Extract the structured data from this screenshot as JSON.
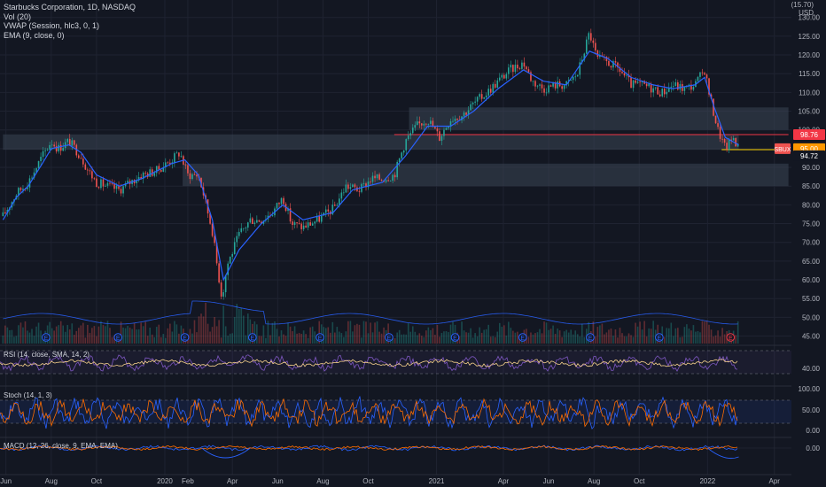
{
  "header": {
    "title": "Starbucks Corporation, 1D, NASDAQ",
    "indicators": [
      "Vol (20)",
      "VWAP (Session, hlc3, 0, 1)",
      "EMA (9, close, 0)"
    ],
    "currency_top": "(15.70)",
    "currency": "USD"
  },
  "price_labels": {
    "resistance": "98.76",
    "ticker": "SBUX",
    "last": "95.00",
    "support": "94.72"
  },
  "panes": {
    "rsi_label": "RSI (14, close, SMA, 14, 2)",
    "rsi_tick": "40.00",
    "stoch_label": "Stoch (14, 1, 3)",
    "stoch_ticks": [
      "100.00",
      "50.00",
      "0.00"
    ],
    "macd_label": "MACD (12, 26, close, 9, EMA, EMA)",
    "macd_tick": "0.00"
  },
  "colors": {
    "background": "#131722",
    "grid": "#1f2331",
    "up": "#26a69a",
    "down": "#ef5350",
    "ema": "#2962ff",
    "zone": "#3b4653",
    "resistance_line": "#f23645",
    "support_line": "#ffd600",
    "rsi": "#7e57c2",
    "rsi_ma": "#f5d08a",
    "stoch_k": "#2962ff",
    "stoch_d": "#ff6d00",
    "macd": "#2962ff",
    "signal": "#ff6d00",
    "earnings_past": "#2962ff",
    "earnings_next": "#f23645"
  },
  "chart_data": {
    "type": "line",
    "symbol": "SBUX",
    "interval": "1D",
    "exchange": "NASDAQ",
    "x_tick_labels": [
      "Jun",
      "Aug",
      "Oct",
      "2020",
      "Feb",
      "Apr",
      "Jun",
      "Aug",
      "Oct",
      "2021",
      "Apr",
      "Jun",
      "Aug",
      "Oct",
      "2022",
      "Apr"
    ],
    "y_tick_labels": [
      "130.00",
      "125.00",
      "120.00",
      "115.00",
      "110.00",
      "105.00",
      "100.00",
      "95.00",
      "90.00",
      "85.00",
      "80.00",
      "75.00",
      "70.00",
      "65.00",
      "60.00",
      "55.00",
      "50.00",
      "45.00"
    ],
    "ylim": [
      43,
      133
    ],
    "price_series": {
      "name": "SBUX",
      "points": [
        [
          "2019-05-28",
          77
        ],
        [
          "2019-06-15",
          83
        ],
        [
          "2019-07-01",
          86
        ],
        [
          "2019-07-20",
          93
        ],
        [
          "2019-08-01",
          97
        ],
        [
          "2019-08-10",
          95
        ],
        [
          "2019-08-25",
          97
        ],
        [
          "2019-09-10",
          93
        ],
        [
          "2019-09-20",
          89
        ],
        [
          "2019-10-01",
          86
        ],
        [
          "2019-10-15",
          85
        ],
        [
          "2019-11-01",
          84
        ],
        [
          "2019-11-15",
          86
        ],
        [
          "2019-12-01",
          88
        ],
        [
          "2019-12-20",
          89
        ],
        [
          "2020-01-10",
          92
        ],
        [
          "2020-01-21",
          94
        ],
        [
          "2020-02-01",
          88
        ],
        [
          "2020-02-15",
          88
        ],
        [
          "2020-02-22",
          83
        ],
        [
          "2020-03-05",
          73
        ],
        [
          "2020-03-12",
          63
        ],
        [
          "2020-03-18",
          55
        ],
        [
          "2020-03-25",
          64
        ],
        [
          "2020-04-10",
          72
        ],
        [
          "2020-04-25",
          76
        ],
        [
          "2020-05-10",
          76
        ],
        [
          "2020-05-25",
          78
        ],
        [
          "2020-06-08",
          82
        ],
        [
          "2020-06-20",
          75
        ],
        [
          "2020-07-05",
          74
        ],
        [
          "2020-07-25",
          76
        ],
        [
          "2020-08-15",
          79
        ],
        [
          "2020-09-01",
          85
        ],
        [
          "2020-09-20",
          84
        ],
        [
          "2020-10-05",
          87
        ],
        [
          "2020-10-20",
          87
        ],
        [
          "2020-11-05",
          88
        ],
        [
          "2020-11-20",
          97
        ],
        [
          "2020-12-05",
          101
        ],
        [
          "2020-12-20",
          103
        ],
        [
          "2021-01-05",
          98
        ],
        [
          "2021-01-20",
          103
        ],
        [
          "2021-02-05",
          104
        ],
        [
          "2021-02-20",
          107
        ],
        [
          "2021-03-10",
          110
        ],
        [
          "2021-03-25",
          113
        ],
        [
          "2021-04-10",
          116
        ],
        [
          "2021-04-28",
          118
        ],
        [
          "2021-05-10",
          113
        ],
        [
          "2021-05-25",
          111
        ],
        [
          "2021-06-10",
          112
        ],
        [
          "2021-06-25",
          112
        ],
        [
          "2021-07-10",
          115
        ],
        [
          "2021-07-26",
          126
        ],
        [
          "2021-08-05",
          119
        ],
        [
          "2021-08-20",
          118
        ],
        [
          "2021-09-05",
          116
        ],
        [
          "2021-09-20",
          112
        ],
        [
          "2021-10-05",
          112
        ],
        [
          "2021-10-20",
          111
        ],
        [
          "2021-11-01",
          110
        ],
        [
          "2021-11-15",
          112
        ],
        [
          "2021-12-01",
          111
        ],
        [
          "2021-12-15",
          112
        ],
        [
          "2021-12-28",
          116
        ],
        [
          "2022-01-05",
          108
        ],
        [
          "2022-01-15",
          100
        ],
        [
          "2022-01-25",
          95
        ],
        [
          "2022-02-05",
          98
        ],
        [
          "2022-02-12",
          95
        ]
      ]
    },
    "ema_series": {
      "name": "EMA (9, close, 0)",
      "points": [
        [
          "2019-05-28",
          76
        ],
        [
          "2019-06-15",
          82
        ],
        [
          "2019-07-01",
          85
        ],
        [
          "2019-07-20",
          91
        ],
        [
          "2019-08-01",
          95
        ],
        [
          "2019-08-25",
          96
        ],
        [
          "2019-09-10",
          94
        ],
        [
          "2019-10-01",
          88
        ],
        [
          "2019-11-01",
          85
        ],
        [
          "2019-12-01",
          87
        ],
        [
          "2020-01-10",
          91
        ],
        [
          "2020-01-28",
          92
        ],
        [
          "2020-02-15",
          88
        ],
        [
          "2020-03-05",
          76
        ],
        [
          "2020-03-20",
          60
        ],
        [
          "2020-04-10",
          68
        ],
        [
          "2020-05-10",
          75
        ],
        [
          "2020-06-08",
          80
        ],
        [
          "2020-07-05",
          76
        ],
        [
          "2020-08-15",
          78
        ],
        [
          "2020-09-10",
          84
        ],
        [
          "2020-10-20",
          86
        ],
        [
          "2020-11-20",
          93
        ],
        [
          "2020-12-20",
          101
        ],
        [
          "2021-01-20",
          101
        ],
        [
          "2021-02-20",
          105
        ],
        [
          "2021-03-25",
          111
        ],
        [
          "2021-04-28",
          116
        ],
        [
          "2021-05-25",
          113
        ],
        [
          "2021-06-25",
          112
        ],
        [
          "2021-07-26",
          121
        ],
        [
          "2021-08-20",
          119
        ],
        [
          "2021-09-20",
          114
        ],
        [
          "2021-10-20",
          112
        ],
        [
          "2021-11-15",
          111
        ],
        [
          "2021-12-15",
          112
        ],
        [
          "2021-12-28",
          114
        ],
        [
          "2022-01-10",
          106
        ],
        [
          "2022-01-25",
          98
        ],
        [
          "2022-02-12",
          96
        ]
      ]
    },
    "zones": [
      {
        "from": "2019-05-28",
        "to": "2022-02-12",
        "low": 94.7,
        "high": 98.8
      },
      {
        "from": "2020-01-25",
        "to": "2022-04-20",
        "low": 85,
        "high": 91
      },
      {
        "from": "2020-11-25",
        "to": "2022-04-20",
        "low": 100,
        "high": 106
      },
      {
        "from": "2020-11-05",
        "to": "2022-04-20",
        "low": 98.76,
        "high": 98.76,
        "label": "98.76"
      },
      {
        "from": "2022-01-20",
        "to": "2022-04-20",
        "low": 94.72,
        "high": 94.72,
        "label": "94.72"
      }
    ],
    "earnings_dates": [
      "2019-07-25",
      "2019-10-30",
      "2020-01-28",
      "2020-04-28",
      "2020-07-28",
      "2020-10-29",
      "2021-01-26",
      "2021-04-27",
      "2021-07-27",
      "2021-10-28",
      "2022-02-01"
    ],
    "upcoming_earnings": "2020-04-28",
    "volume_ylim": [
      0,
      100
    ],
    "rsi": {
      "levels": [
        30,
        70
      ],
      "ylim": [
        20,
        80
      ],
      "tick": 40
    },
    "stoch": {
      "levels": [
        20,
        80
      ],
      "ylim": [
        0,
        110
      ],
      "ticks": [
        100,
        50,
        0
      ]
    },
    "macd": {
      "tick": 0
    }
  }
}
